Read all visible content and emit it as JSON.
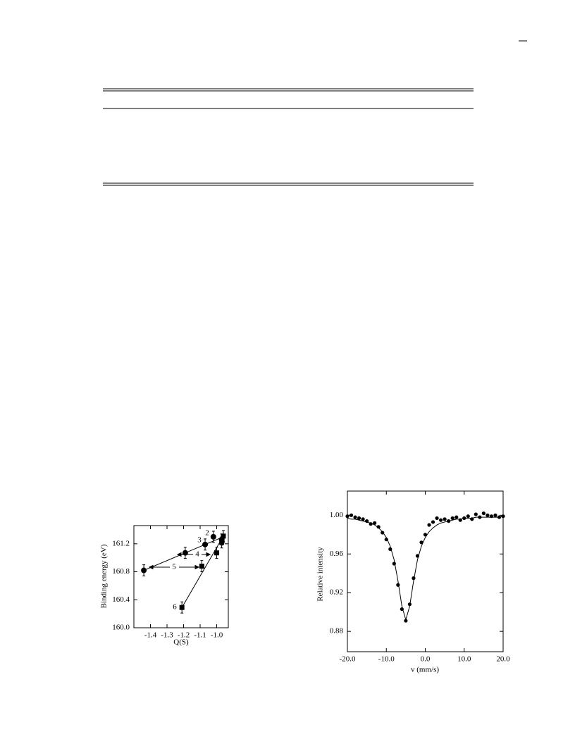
{
  "chart_data": [
    {
      "type": "scatter",
      "xlabel": "Q(S)",
      "ylabel": "Binding energy (eV)",
      "xlim": [
        -1.5,
        -0.93
      ],
      "ylim": [
        160.0,
        161.46
      ],
      "xticks": [
        -1.4,
        -1.3,
        -1.2,
        -1.1,
        {
          "value": -1,
          "label": "-1.0"
        }
      ],
      "yticks": [
        {
          "value": 160,
          "label": "160.0"
        },
        160.4,
        160.8,
        161.2
      ],
      "annotations": [
        "1",
        "2",
        "3",
        "4",
        "5",
        "6"
      ],
      "series": [
        {
          "marker": "circle",
          "color": "#000000",
          "x": [
            -1.44,
            -1.19,
            -1.07,
            -1.02,
            -0.97
          ],
          "values": [
            160.82,
            161.07,
            161.19,
            161.3,
            161.26
          ],
          "errors": [
            0.08,
            0.08,
            0.08,
            0.08,
            0.08
          ]
        },
        {
          "marker": "square",
          "color": "#000000",
          "x": [
            -0.96,
            -0.97,
            -1.0,
            -1.09,
            -1.21
          ],
          "values": [
            161.31,
            161.22,
            161.07,
            160.88,
            160.29
          ],
          "errors": [
            0.08,
            0.08,
            0.08,
            0.08,
            0.08
          ]
        },
        {
          "marker": "line",
          "color": "#000000",
          "x": [
            -1.44,
            -0.96
          ],
          "values": [
            160.82,
            161.3
          ]
        },
        {
          "marker": "line",
          "color": "#000000",
          "x": [
            -1.21,
            -0.96
          ],
          "values": [
            160.29,
            161.31
          ]
        }
      ]
    },
    {
      "type": "scatter",
      "xlabel": "v (mm/s)",
      "ylabel": "Relative intensity",
      "xlim": [
        -20,
        20
      ],
      "ylim": [
        0.859,
        1.025
      ],
      "xticks": [
        {
          "value": -20,
          "label": "-20.0"
        },
        {
          "value": -10,
          "label": "-10.0"
        },
        {
          "value": 0,
          "label": "0.0"
        },
        {
          "value": 10,
          "label": "10.0"
        },
        {
          "value": 20,
          "label": "20.0"
        }
      ],
      "yticks": [
        0.88,
        0.92,
        0.96,
        {
          "value": 1,
          "label": "1.00"
        }
      ],
      "x": [
        -20,
        -19,
        -18,
        -17,
        -16,
        -15,
        -14,
        -13,
        -12,
        -11,
        -10,
        -9,
        -8,
        -7,
        -6,
        -5,
        -4,
        -3,
        -2,
        -1,
        0,
        1,
        2,
        3,
        4,
        5,
        6,
        7,
        8,
        9,
        10,
        11,
        12,
        13,
        14,
        15,
        16,
        17,
        18,
        19,
        20
      ],
      "series": [
        {
          "marker": "dot",
          "color": "#000000",
          "values": [
            0.999,
            1.0,
            0.998,
            0.997,
            0.996,
            0.994,
            0.991,
            0.992,
            0.988,
            0.982,
            0.975,
            0.965,
            0.95,
            0.928,
            0.903,
            0.891,
            0.908,
            0.935,
            0.958,
            0.972,
            0.98,
            0.99,
            0.993,
            0.997,
            0.995,
            0.996,
            0.994,
            0.997,
            0.998,
            0.995,
            0.997,
            0.999,
            0.996,
            1.001,
            0.998,
            1.002,
            1.0,
            0.999,
            1.0,
            0.998,
            0.999
          ]
        },
        {
          "marker": "line",
          "color": "#000000",
          "values": [
            0.997,
            0.996,
            0.996,
            0.995,
            0.994,
            0.993,
            0.992,
            0.99,
            0.987,
            0.983,
            0.977,
            0.968,
            0.954,
            0.932,
            0.906,
            0.892,
            0.906,
            0.932,
            0.954,
            0.968,
            0.977,
            0.983,
            0.987,
            0.99,
            0.992,
            0.993,
            0.994,
            0.995,
            0.996,
            0.996,
            0.997,
            0.997,
            0.997,
            0.998,
            0.998,
            0.998,
            0.998,
            0.998,
            0.998,
            0.998,
            0.999
          ]
        }
      ]
    }
  ]
}
